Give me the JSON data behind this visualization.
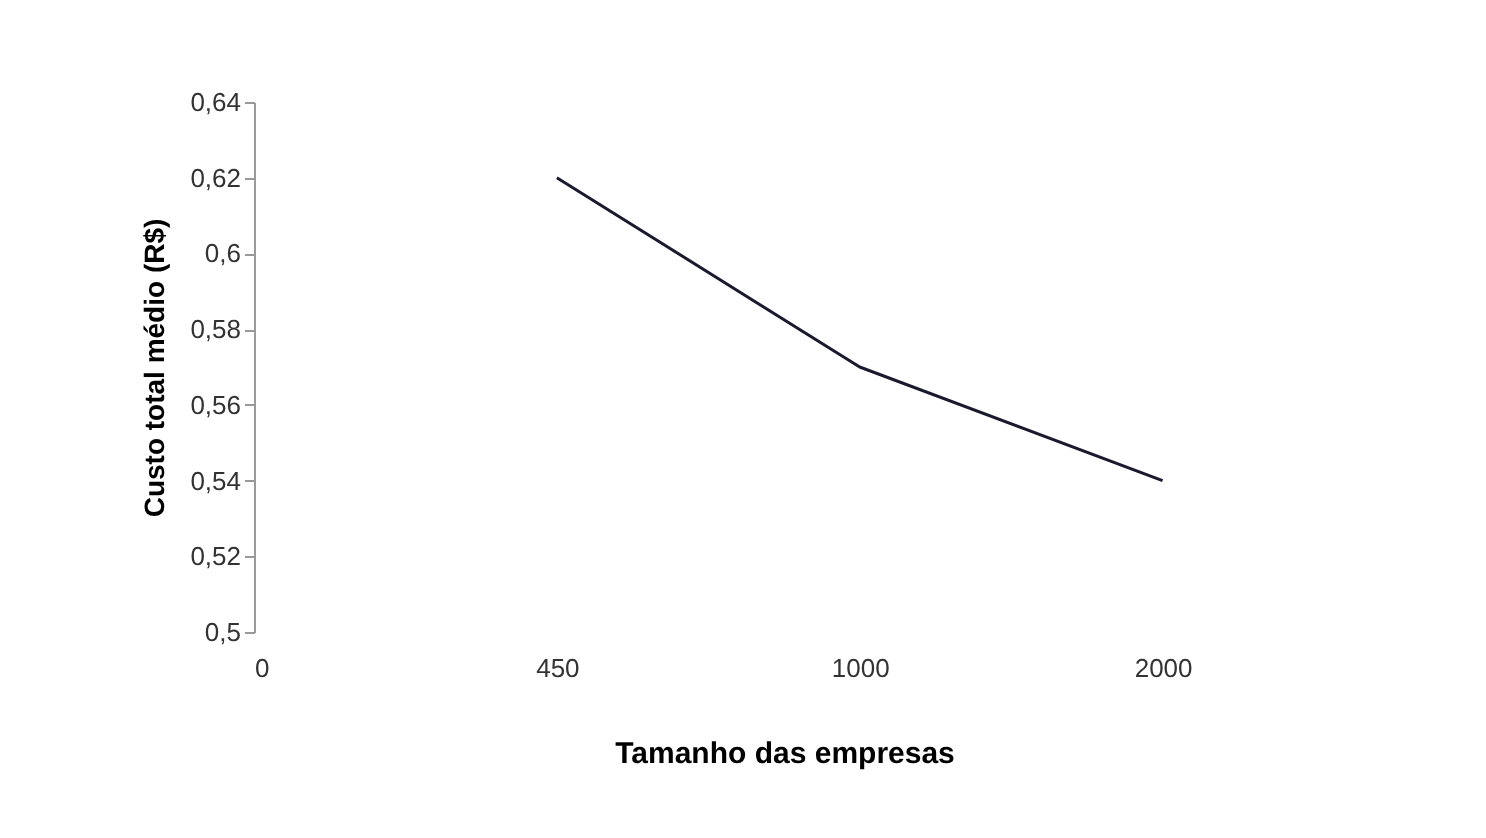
{
  "chart_data": {
    "type": "line",
    "xlabel": "Tamanho das empresas",
    "ylabel": "Custo total médio (R$)",
    "categories": [
      "0",
      "450",
      "1000",
      "2000"
    ],
    "series": [
      {
        "color": "#1a1a2e",
        "values": [
          null,
          0.62,
          0.57,
          0.54
        ]
      }
    ],
    "ylim": [
      0.5,
      0.64
    ],
    "yticks": [
      {
        "value": 0.5,
        "label": "0,5"
      },
      {
        "value": 0.52,
        "label": "0,52"
      },
      {
        "value": 0.54,
        "label": "0,54"
      },
      {
        "value": 0.56,
        "label": "0,56"
      },
      {
        "value": 0.58,
        "label": "0,58"
      },
      {
        "value": 0.6,
        "label": "0,6"
      },
      {
        "value": 0.62,
        "label": "0,62"
      },
      {
        "value": 0.64,
        "label": "0,64"
      }
    ],
    "grid": false,
    "marker": "none",
    "line_style": "solid"
  }
}
